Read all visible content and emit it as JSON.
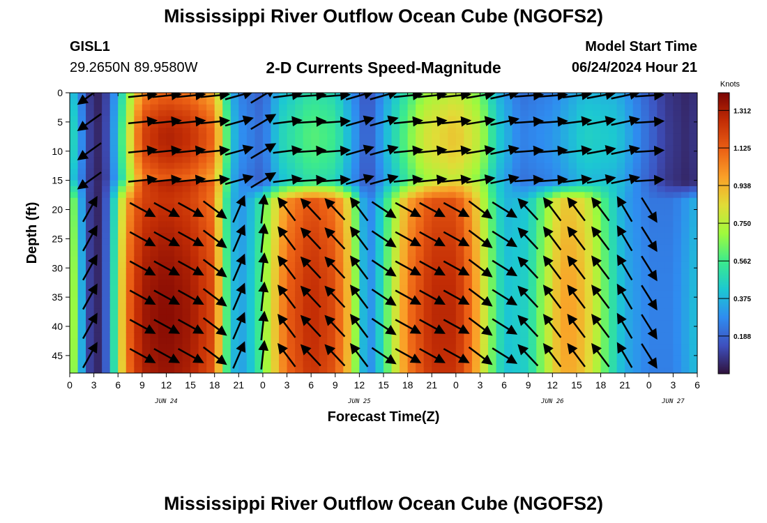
{
  "header": {
    "title": "Mississippi River Outflow Ocean Cube (NGOFS2)",
    "station_name": "GISL1",
    "station_coords": "29.2650N  89.9580W",
    "subtitle": "2-D Currents Speed-Magnitude",
    "model_start_label": "Model Start Time",
    "model_start_value": "06/24/2024 Hour 21"
  },
  "footer": {
    "title": "Mississippi River Outflow Ocean Cube (NGOFS2)"
  },
  "chart_data": {
    "type": "heatmap",
    "xlabel": "Forecast Time(Z)",
    "ylabel": "Depth (ft)",
    "x_unit": "forecast hour from Jun 24 00Z",
    "xlim": [
      0,
      78
    ],
    "ylim": [
      0,
      48
    ],
    "x_tick_values": [
      0,
      3,
      6,
      9,
      12,
      15,
      18,
      21,
      24,
      27,
      30,
      33,
      36,
      39,
      42,
      45,
      48,
      51,
      54,
      57,
      60,
      63,
      66,
      69,
      72,
      75,
      78
    ],
    "x_tick_labels": [
      "0",
      "3",
      "6",
      "9",
      "12",
      "15",
      "18",
      "21",
      "0",
      "3",
      "6",
      "9",
      "12",
      "15",
      "18",
      "21",
      "0",
      "3",
      "6",
      "9",
      "12",
      "15",
      "18",
      "21",
      "0",
      "3",
      "6"
    ],
    "y_ticks": [
      0,
      5,
      10,
      15,
      20,
      25,
      30,
      35,
      40,
      45
    ],
    "date_labels": [
      {
        "text": "JUN 24",
        "hour": 12
      },
      {
        "text": "JUN 25",
        "hour": 36
      },
      {
        "text": "JUN 26",
        "hour": 60
      },
      {
        "text": "JUN 27",
        "hour": 75
      }
    ],
    "colorbar": {
      "units": "Knots",
      "min": 0.0,
      "max": 1.4,
      "labels": [
        "1.312",
        "1.125",
        "0.938",
        "0.750",
        "0.562",
        "0.375",
        "0.188"
      ]
    },
    "layer_boundary_ft": 15.5,
    "upper_layer_speed_by_hour": [
      [
        0,
        0.5
      ],
      [
        1,
        0.4
      ],
      [
        2,
        0.15
      ],
      [
        3,
        0.05
      ],
      [
        4,
        0.05
      ],
      [
        5,
        0.2
      ],
      [
        6,
        0.45
      ],
      [
        7,
        0.7
      ],
      [
        9,
        1.2
      ],
      [
        12,
        1.3
      ],
      [
        15,
        1.25
      ],
      [
        18,
        1.1
      ],
      [
        19,
        0.75
      ],
      [
        20,
        0.45
      ],
      [
        21,
        0.3
      ],
      [
        24,
        0.2
      ],
      [
        26,
        0.45
      ],
      [
        30,
        0.6
      ],
      [
        33,
        0.55
      ],
      [
        35,
        0.35
      ],
      [
        37,
        0.15
      ],
      [
        38,
        0.25
      ],
      [
        40,
        0.45
      ],
      [
        44,
        0.8
      ],
      [
        48,
        0.9
      ],
      [
        51,
        0.75
      ],
      [
        53,
        0.45
      ],
      [
        56,
        0.25
      ],
      [
        60,
        0.3
      ],
      [
        64,
        0.45
      ],
      [
        68,
        0.42
      ],
      [
        71,
        0.25
      ],
      [
        74,
        0.1
      ],
      [
        77,
        0.05
      ],
      [
        78,
        0.1
      ]
    ],
    "lower_layer_speed_by_hour": [
      [
        0,
        0.8
      ],
      [
        1,
        0.55
      ],
      [
        2,
        0.15
      ],
      [
        3,
        0.05
      ],
      [
        4,
        0.05
      ],
      [
        5,
        0.3
      ],
      [
        6,
        0.7
      ],
      [
        7,
        1.05
      ],
      [
        9,
        1.3
      ],
      [
        12,
        1.35
      ],
      [
        15,
        1.3
      ],
      [
        18,
        1.15
      ],
      [
        19,
        0.7
      ],
      [
        20,
        0.45
      ],
      [
        21,
        0.3
      ],
      [
        23,
        0.45
      ],
      [
        25,
        0.8
      ],
      [
        27,
        1.1
      ],
      [
        30,
        1.25
      ],
      [
        33,
        1.15
      ],
      [
        35,
        0.85
      ],
      [
        36,
        0.5
      ],
      [
        37,
        0.25
      ],
      [
        38,
        0.35
      ],
      [
        40,
        0.7
      ],
      [
        42,
        1.05
      ],
      [
        45,
        1.25
      ],
      [
        48,
        1.25
      ],
      [
        50,
        1.05
      ],
      [
        52,
        0.7
      ],
      [
        54,
        0.4
      ],
      [
        57,
        0.45
      ],
      [
        59,
        0.7
      ],
      [
        61,
        0.95
      ],
      [
        63,
        0.95
      ],
      [
        65,
        0.8
      ],
      [
        67,
        0.55
      ],
      [
        69,
        0.35
      ],
      [
        72,
        0.25
      ],
      [
        75,
        0.25
      ],
      [
        78,
        0.4
      ]
    ],
    "vector_columns": [
      {
        "hour": 2.5,
        "u": -0.7,
        "v": -0.5,
        "deep_u": 0.5,
        "deep_v": 0.9
      },
      {
        "hour": 9,
        "u": 1.0,
        "v": 0.1,
        "deep_u": 1.0,
        "deep_v": -0.55
      },
      {
        "hour": 12,
        "u": 1.0,
        "v": 0.1,
        "deep_u": 1.0,
        "deep_v": -0.55
      },
      {
        "hour": 15,
        "u": 1.0,
        "v": 0.1,
        "deep_u": 1.0,
        "deep_v": -0.55
      },
      {
        "hour": 18,
        "u": 1.0,
        "v": 0.1,
        "deep_u": 0.8,
        "deep_v": -0.6
      },
      {
        "hour": 21,
        "u": 0.9,
        "v": 0.25,
        "deep_u": 0.3,
        "deep_v": 0.7
      },
      {
        "hour": 24,
        "u": 0.5,
        "v": 0.3,
        "deep_u": 0.1,
        "deep_v": 0.9
      },
      {
        "hour": 27,
        "u": 0.8,
        "v": 0.1,
        "deep_u": -0.6,
        "deep_v": 0.8
      },
      {
        "hour": 30,
        "u": 0.8,
        "v": 0.05,
        "deep_u": -0.7,
        "deep_v": 0.75
      },
      {
        "hour": 33,
        "u": 0.7,
        "v": 0.05,
        "deep_u": -0.7,
        "deep_v": 0.75
      },
      {
        "hour": 36,
        "u": 0.7,
        "v": 0.2,
        "deep_u": -0.6,
        "deep_v": 0.8
      },
      {
        "hour": 39,
        "u": 0.9,
        "v": 0.25,
        "deep_u": 0.9,
        "deep_v": -0.6
      },
      {
        "hour": 42,
        "u": 1.0,
        "v": 0.1,
        "deep_u": 1.0,
        "deep_v": -0.55
      },
      {
        "hour": 45,
        "u": 1.0,
        "v": 0.1,
        "deep_u": 1.0,
        "deep_v": -0.55
      },
      {
        "hour": 48,
        "u": 1.0,
        "v": 0.1,
        "deep_u": 1.0,
        "deep_v": -0.55
      },
      {
        "hour": 51,
        "u": 0.9,
        "v": 0.15,
        "deep_u": 0.8,
        "deep_v": -0.6
      },
      {
        "hour": 54,
        "u": 0.7,
        "v": 0.15,
        "deep_u": 0.8,
        "deep_v": -0.5
      },
      {
        "hour": 57,
        "u": 0.7,
        "v": 0.05,
        "deep_u": -0.7,
        "deep_v": 0.75
      },
      {
        "hour": 60,
        "u": 0.7,
        "v": 0.05,
        "deep_u": -0.6,
        "deep_v": 0.8
      },
      {
        "hour": 63,
        "u": 0.8,
        "v": 0.1,
        "deep_u": -0.6,
        "deep_v": 0.8
      },
      {
        "hour": 66,
        "u": 0.8,
        "v": 0.15,
        "deep_u": -0.6,
        "deep_v": 0.8
      },
      {
        "hour": 69,
        "u": 0.7,
        "v": 0.15,
        "deep_u": -0.5,
        "deep_v": 0.85
      },
      {
        "hour": 72,
        "u": 0.8,
        "v": 0.05,
        "deep_u": 0.5,
        "deep_v": -0.8
      }
    ]
  }
}
